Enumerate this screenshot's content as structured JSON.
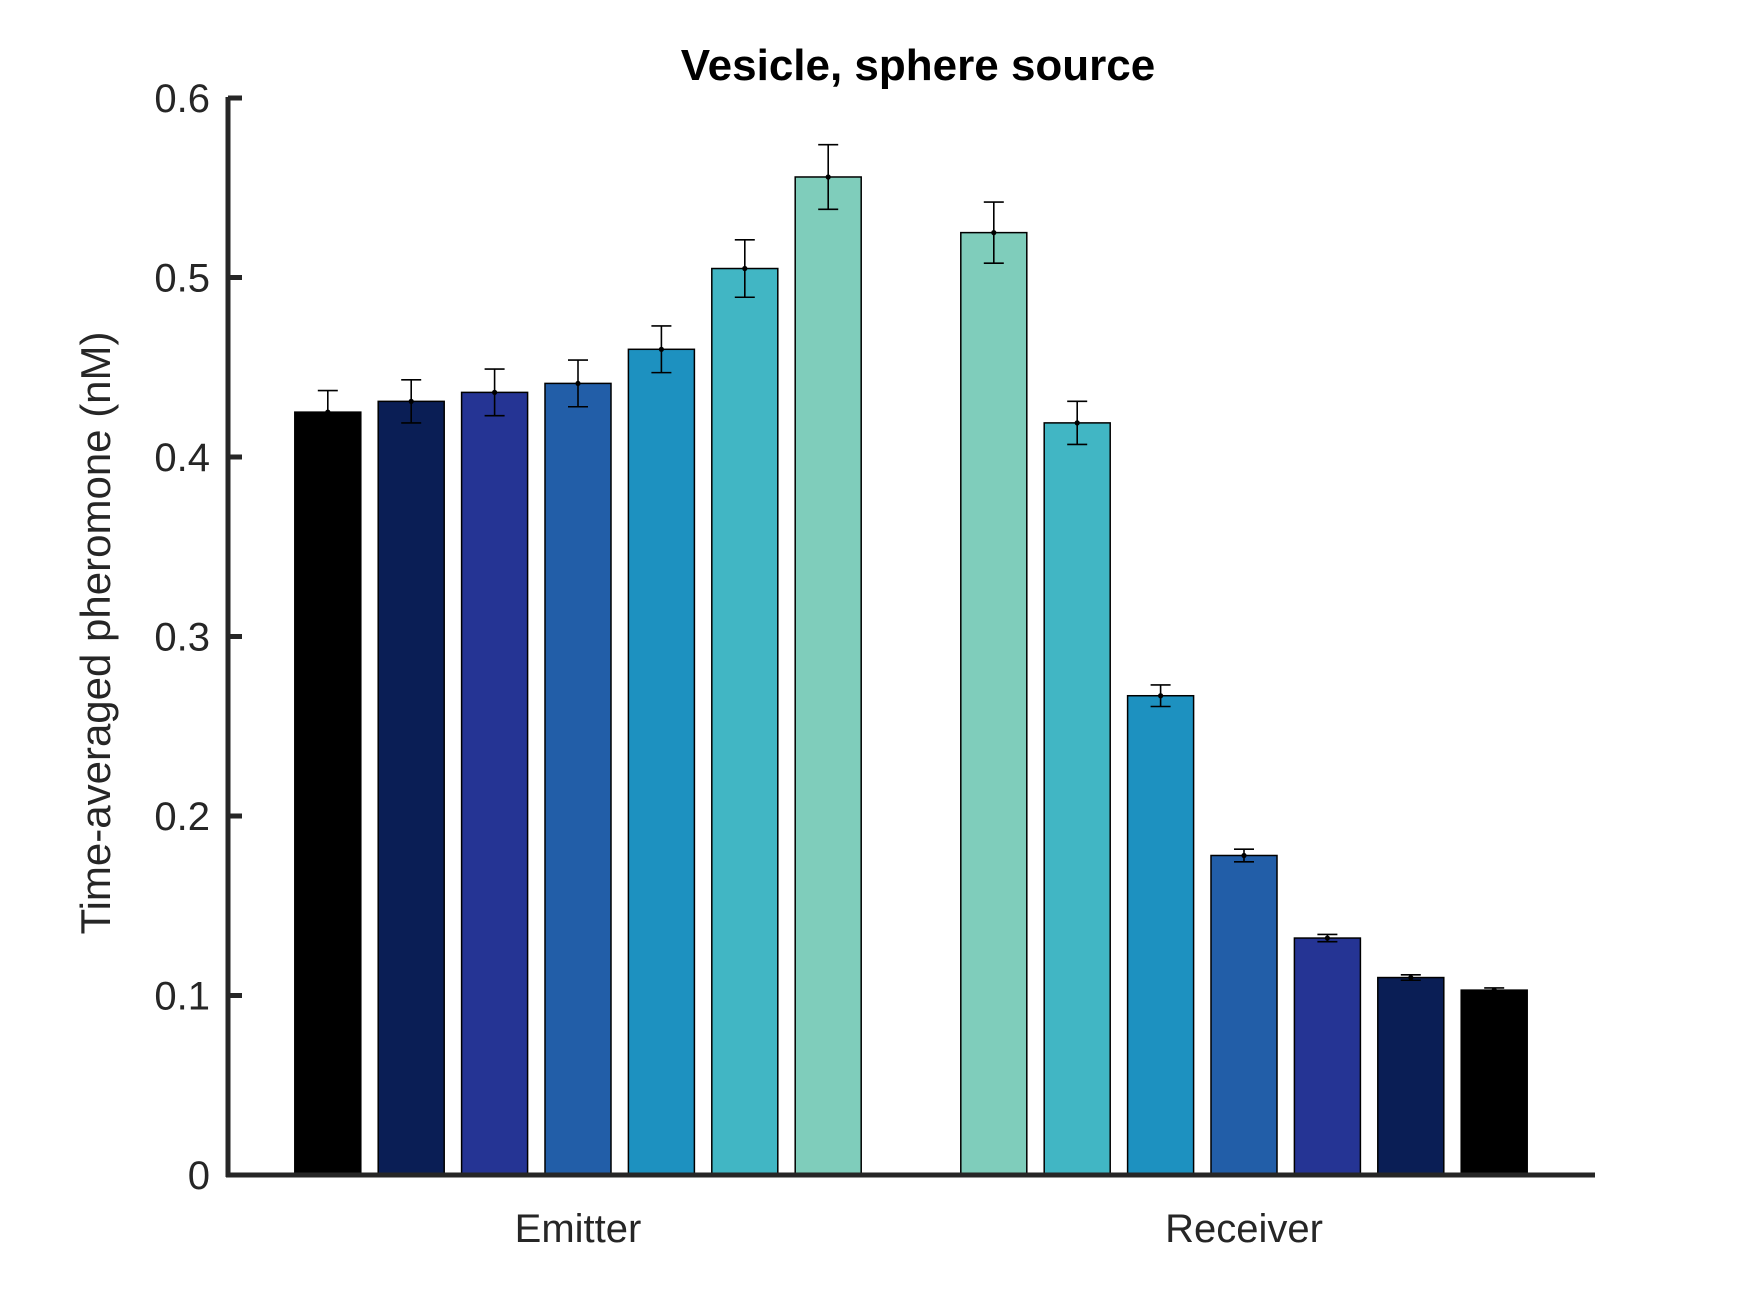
{
  "chart_data": {
    "type": "bar",
    "title": "Vesicle, sphere source",
    "xlabel": "",
    "ylabel": "Time-averaged pheromone (nM)",
    "ylim": [
      0,
      0.6
    ],
    "yticks": [
      0,
      0.1,
      0.2,
      0.3,
      0.4,
      0.5,
      0.6
    ],
    "ytick_labels": [
      "0",
      "0.1",
      "0.2",
      "0.3",
      "0.4",
      "0.5",
      "0.6"
    ],
    "categories": [
      "Emitter",
      "Receiver"
    ],
    "grid": false,
    "legend": "none",
    "groups": [
      {
        "label": "Emitter",
        "bars": [
          {
            "value": 0.425,
            "err": 0.012,
            "color": "#000000"
          },
          {
            "value": 0.431,
            "err": 0.012,
            "color": "#0a1e55"
          },
          {
            "value": 0.436,
            "err": 0.013,
            "color": "#253494"
          },
          {
            "value": 0.441,
            "err": 0.013,
            "color": "#225ea8"
          },
          {
            "value": 0.46,
            "err": 0.013,
            "color": "#1d91c0"
          },
          {
            "value": 0.505,
            "err": 0.016,
            "color": "#41b6c4"
          },
          {
            "value": 0.556,
            "err": 0.018,
            "color": "#7fcdbb"
          }
        ]
      },
      {
        "label": "Receiver",
        "bars": [
          {
            "value": 0.525,
            "err": 0.017,
            "color": "#7fcdbb"
          },
          {
            "value": 0.419,
            "err": 0.012,
            "color": "#41b6c4"
          },
          {
            "value": 0.267,
            "err": 0.006,
            "color": "#1d91c0"
          },
          {
            "value": 0.178,
            "err": 0.0035,
            "color": "#225ea8"
          },
          {
            "value": 0.132,
            "err": 0.002,
            "color": "#253494"
          },
          {
            "value": 0.11,
            "err": 0.0015,
            "color": "#0a1e55"
          },
          {
            "value": 0.103,
            "err": 0.0012,
            "color": "#000000"
          }
        ]
      }
    ]
  }
}
